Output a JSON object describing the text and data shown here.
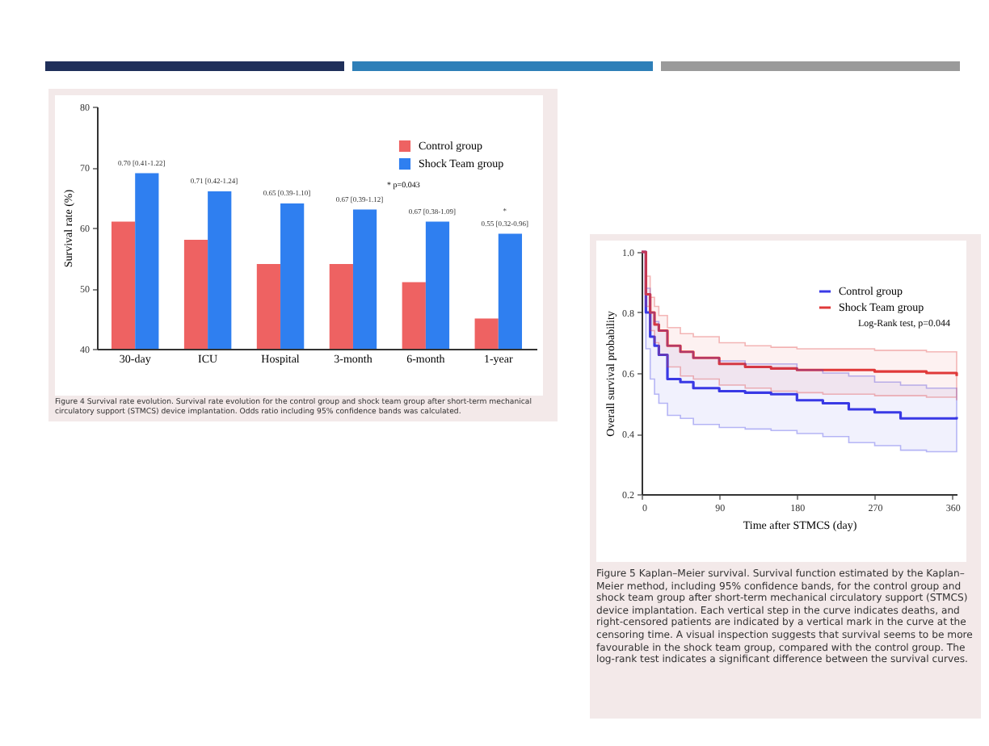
{
  "chart_data": [
    {
      "type": "bar",
      "ylabel": "Survival rate (%)",
      "categories": [
        "30-day",
        "ICU",
        "Hospital",
        "3-month",
        "6-month",
        "1-year"
      ],
      "series": [
        {
          "name": "Control group",
          "color": "#ee6262",
          "values": [
            61,
            58,
            54,
            54,
            51,
            45
          ]
        },
        {
          "name": "Shock Team group",
          "color": "#2f7ff0",
          "values": [
            69,
            66,
            64,
            63,
            61,
            59
          ]
        }
      ],
      "ylim": [
        40,
        80
      ],
      "yticks": [
        40,
        50,
        60,
        70,
        80
      ],
      "grid": false,
      "legend": "top right",
      "annotations": [
        {
          "text": "0.70 [0.41-1.22]",
          "x": "30-day",
          "y": 69
        },
        {
          "text": "0.71 [0.42-1.24]",
          "x": "ICU",
          "y": 66
        },
        {
          "text": "0.65 [0.39-1.10]",
          "x": "Hospital",
          "y": 64
        },
        {
          "text": "0.67 [0.39-1.12]",
          "x": "3-month",
          "y": 63
        },
        {
          "text": "0.67 [0.38-1.09]",
          "x": "6-month",
          "y": 61
        },
        {
          "text": "0.55 [0.32-0.96]",
          "x": "1-year",
          "y": 59
        },
        {
          "text": "*",
          "x": "1-year",
          "y": 59
        },
        "* p=0.043",
        "Figure 4 Survival rate evolution. Survival rate evolution for the control group and shock team group after short-term mechanical circulatory support (STMCS) device implantation. Odds ratio including 95% confidence bands was calculated."
      ]
    },
    {
      "type": "step",
      "xlabel": "Time after STMCS (day)",
      "ylabel": "Overall survival probability",
      "series": [
        {
          "name": "Control group",
          "color": "#3a3ae6",
          "x": [
            0,
            5,
            10,
            15,
            20,
            30,
            45,
            60,
            90,
            120,
            150,
            180,
            210,
            240,
            270,
            300,
            330,
            365
          ],
          "values": [
            1.0,
            0.8,
            0.72,
            0.69,
            0.66,
            0.58,
            0.57,
            0.55,
            0.54,
            0.535,
            0.53,
            0.51,
            0.5,
            0.48,
            0.47,
            0.45,
            0.45,
            0.455
          ],
          "lower": [
            1.0,
            0.68,
            0.58,
            0.53,
            0.5,
            0.46,
            0.45,
            0.43,
            0.42,
            0.415,
            0.41,
            0.4,
            0.39,
            0.37,
            0.36,
            0.345,
            0.34,
            0.34
          ],
          "upper": [
            1.0,
            0.88,
            0.8,
            0.77,
            0.74,
            0.69,
            0.67,
            0.65,
            0.64,
            0.63,
            0.63,
            0.61,
            0.6,
            0.59,
            0.57,
            0.56,
            0.55,
            0.55
          ]
        },
        {
          "name": "Shock Team group",
          "color": "#e03a3a",
          "x": [
            0,
            5,
            10,
            15,
            20,
            30,
            45,
            60,
            90,
            120,
            150,
            180,
            210,
            240,
            270,
            300,
            330,
            365
          ],
          "values": [
            1.0,
            0.86,
            0.8,
            0.76,
            0.74,
            0.69,
            0.67,
            0.65,
            0.63,
            0.62,
            0.615,
            0.61,
            0.61,
            0.61,
            0.605,
            0.605,
            0.6,
            0.59
          ],
          "lower": [
            1.0,
            0.82,
            0.74,
            0.7,
            0.66,
            0.62,
            0.59,
            0.58,
            0.56,
            0.55,
            0.54,
            0.535,
            0.53,
            0.53,
            0.525,
            0.525,
            0.52,
            0.51
          ],
          "upper": [
            1.0,
            0.92,
            0.85,
            0.82,
            0.79,
            0.75,
            0.73,
            0.72,
            0.7,
            0.69,
            0.685,
            0.68,
            0.68,
            0.68,
            0.675,
            0.675,
            0.67,
            0.66
          ]
        }
      ],
      "xlim": [
        0,
        365
      ],
      "xticks": [
        0,
        90,
        180,
        270,
        360
      ],
      "ylim": [
        0.2,
        1.0
      ],
      "yticks": [
        0.2,
        0.4,
        0.6,
        0.8,
        {
          "value": 1.0,
          "label": "1.0"
        }
      ],
      "grid": false,
      "legend": "top right",
      "annotations": [
        "Log-Rank test, p=0.044",
        "Figure 5 Kaplan–Meier survival. Survival function estimated by the Kaplan–Meier method, including 95% confidence bands, for the control group and shock team group after short-term mechanical circulatory support (STMCS) device implantation. Each vertical step in the curve indicates deaths, and right-censored patients are indicated by a vertical mark in the curve at the censoring time. A visual inspection suggests that survival seems to be more favourable in the shock team group, compared with the control group. The log-rank test indicates a significant difference between the survival curves."
      ]
    }
  ]
}
